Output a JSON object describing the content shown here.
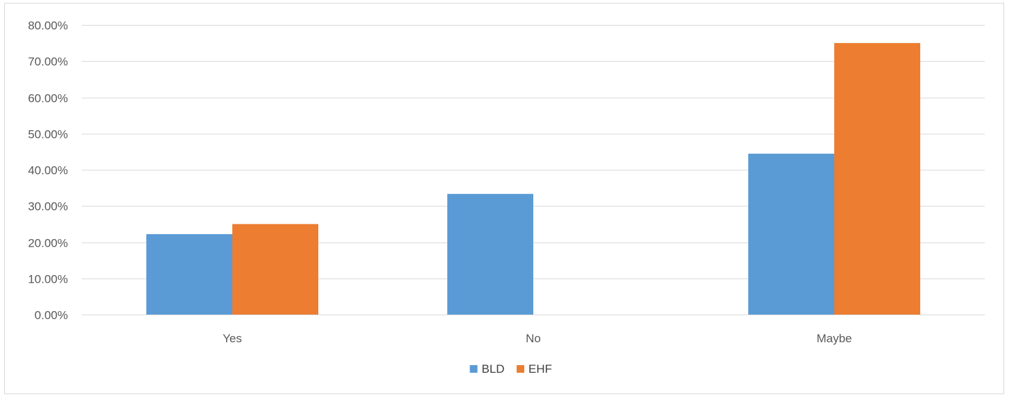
{
  "chart_data": {
    "type": "bar",
    "categories": [
      "Yes",
      "No",
      "Maybe"
    ],
    "series": [
      {
        "name": "BLD",
        "values": [
          22.22,
          33.33,
          44.44
        ],
        "color": "#5b9bd5"
      },
      {
        "name": "EHF",
        "values": [
          25.0,
          0.0,
          75.0
        ],
        "color": "#ed7d31"
      }
    ],
    "yticks": [
      "0.00%",
      "10.00%",
      "20.00%",
      "30.00%",
      "40.00%",
      "50.00%",
      "60.00%",
      "70.00%",
      "80.00%"
    ],
    "ylim": [
      0,
      80
    ],
    "grid": true,
    "legend_position": "bottom",
    "gridline_color": "#d9d9d9"
  }
}
